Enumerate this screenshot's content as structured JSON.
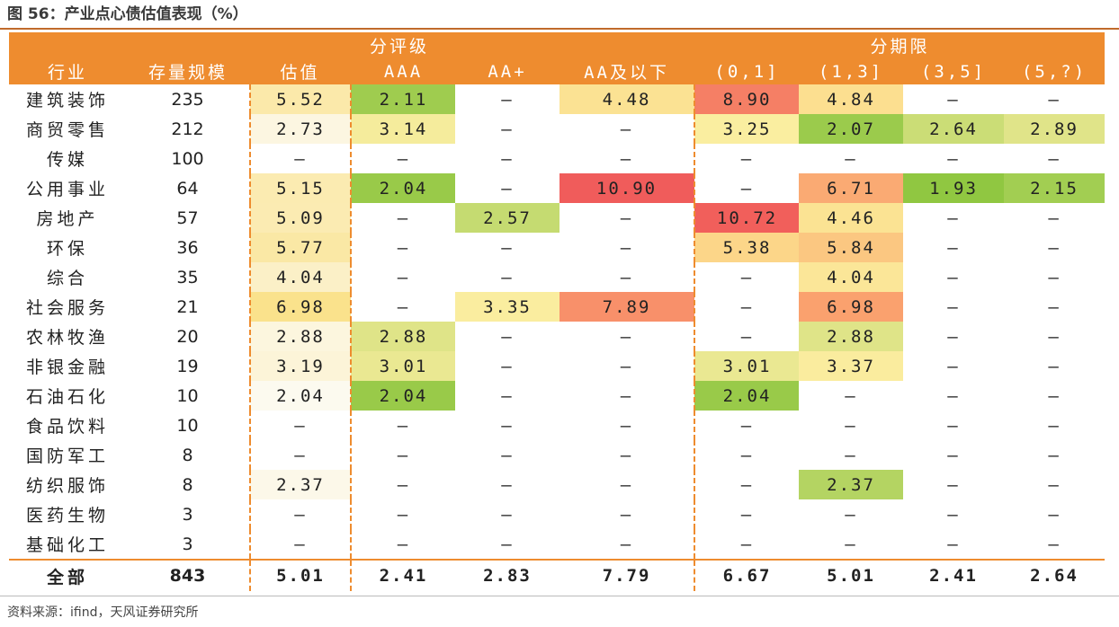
{
  "title": "图 56：产业点心债估值表现（%）",
  "source": "资料来源：ifind，天风证券研究所",
  "colors": {
    "header": "#ee8c2f",
    "accent_rule": "#c06a2b"
  },
  "header": {
    "group_rating": "分评级",
    "group_term": "分期限",
    "columns": [
      "行业",
      "存量规模",
      "估值",
      "AAA",
      "AA+",
      "AA及以下",
      "(0,1]",
      "(1,3]",
      "(3,5]",
      "(5,?)"
    ]
  },
  "rows": [
    {
      "name": "建筑装饰",
      "size": "235",
      "val": "5.52",
      "aaa": "2.11",
      "aap": "–",
      "aab": "4.48",
      "t1": "8.90",
      "t2": "4.84",
      "t3": "–",
      "t4": "–"
    },
    {
      "name": "商贸零售",
      "size": "212",
      "val": "2.73",
      "aaa": "3.14",
      "aap": "–",
      "aab": "–",
      "t1": "3.25",
      "t2": "2.07",
      "t3": "2.64",
      "t4": "2.89"
    },
    {
      "name": "传媒",
      "size": "100",
      "val": "–",
      "aaa": "–",
      "aap": "–",
      "aab": "–",
      "t1": "–",
      "t2": "–",
      "t3": "–",
      "t4": "–"
    },
    {
      "name": "公用事业",
      "size": "64",
      "val": "5.15",
      "aaa": "2.04",
      "aap": "–",
      "aab": "10.90",
      "t1": "–",
      "t2": "6.71",
      "t3": "1.93",
      "t4": "2.15"
    },
    {
      "name": "房地产",
      "size": "57",
      "val": "5.09",
      "aaa": "–",
      "aap": "2.57",
      "aab": "–",
      "t1": "10.72",
      "t2": "4.46",
      "t3": "–",
      "t4": "–"
    },
    {
      "name": "环保",
      "size": "36",
      "val": "5.77",
      "aaa": "–",
      "aap": "–",
      "aab": "–",
      "t1": "5.38",
      "t2": "5.84",
      "t3": "–",
      "t4": "–"
    },
    {
      "name": "综合",
      "size": "35",
      "val": "4.04",
      "aaa": "–",
      "aap": "–",
      "aab": "–",
      "t1": "–",
      "t2": "4.04",
      "t3": "–",
      "t4": "–"
    },
    {
      "name": "社会服务",
      "size": "21",
      "val": "6.98",
      "aaa": "–",
      "aap": "3.35",
      "aab": "7.89",
      "t1": "–",
      "t2": "6.98",
      "t3": "–",
      "t4": "–"
    },
    {
      "name": "农林牧渔",
      "size": "20",
      "val": "2.88",
      "aaa": "2.88",
      "aap": "–",
      "aab": "–",
      "t1": "–",
      "t2": "2.88",
      "t3": "–",
      "t4": "–"
    },
    {
      "name": "非银金融",
      "size": "19",
      "val": "3.19",
      "aaa": "3.01",
      "aap": "–",
      "aab": "–",
      "t1": "3.01",
      "t2": "3.37",
      "t3": "–",
      "t4": "–"
    },
    {
      "name": "石油石化",
      "size": "10",
      "val": "2.04",
      "aaa": "2.04",
      "aap": "–",
      "aab": "–",
      "t1": "2.04",
      "t2": "–",
      "t3": "–",
      "t4": "–"
    },
    {
      "name": "食品饮料",
      "size": "10",
      "val": "–",
      "aaa": "–",
      "aap": "–",
      "aab": "–",
      "t1": "–",
      "t2": "–",
      "t3": "–",
      "t4": "–"
    },
    {
      "name": "国防军工",
      "size": "8",
      "val": "–",
      "aaa": "–",
      "aap": "–",
      "aab": "–",
      "t1": "–",
      "t2": "–",
      "t3": "–",
      "t4": "–"
    },
    {
      "name": "纺织服饰",
      "size": "8",
      "val": "2.37",
      "aaa": "–",
      "aap": "–",
      "aab": "–",
      "t1": "–",
      "t2": "2.37",
      "t3": "–",
      "t4": "–"
    },
    {
      "name": "医药生物",
      "size": "3",
      "val": "–",
      "aaa": "–",
      "aap": "–",
      "aab": "–",
      "t1": "–",
      "t2": "–",
      "t3": "–",
      "t4": "–"
    },
    {
      "name": "基础化工",
      "size": "3",
      "val": "–",
      "aaa": "–",
      "aap": "–",
      "aab": "–",
      "t1": "–",
      "t2": "–",
      "t3": "–",
      "t4": "–"
    }
  ],
  "total": {
    "name": "全部",
    "size": "843",
    "val": "5.01",
    "aaa": "2.41",
    "aap": "2.83",
    "aab": "7.79",
    "t1": "6.67",
    "t2": "5.01",
    "t3": "2.41",
    "t4": "2.64"
  }
}
